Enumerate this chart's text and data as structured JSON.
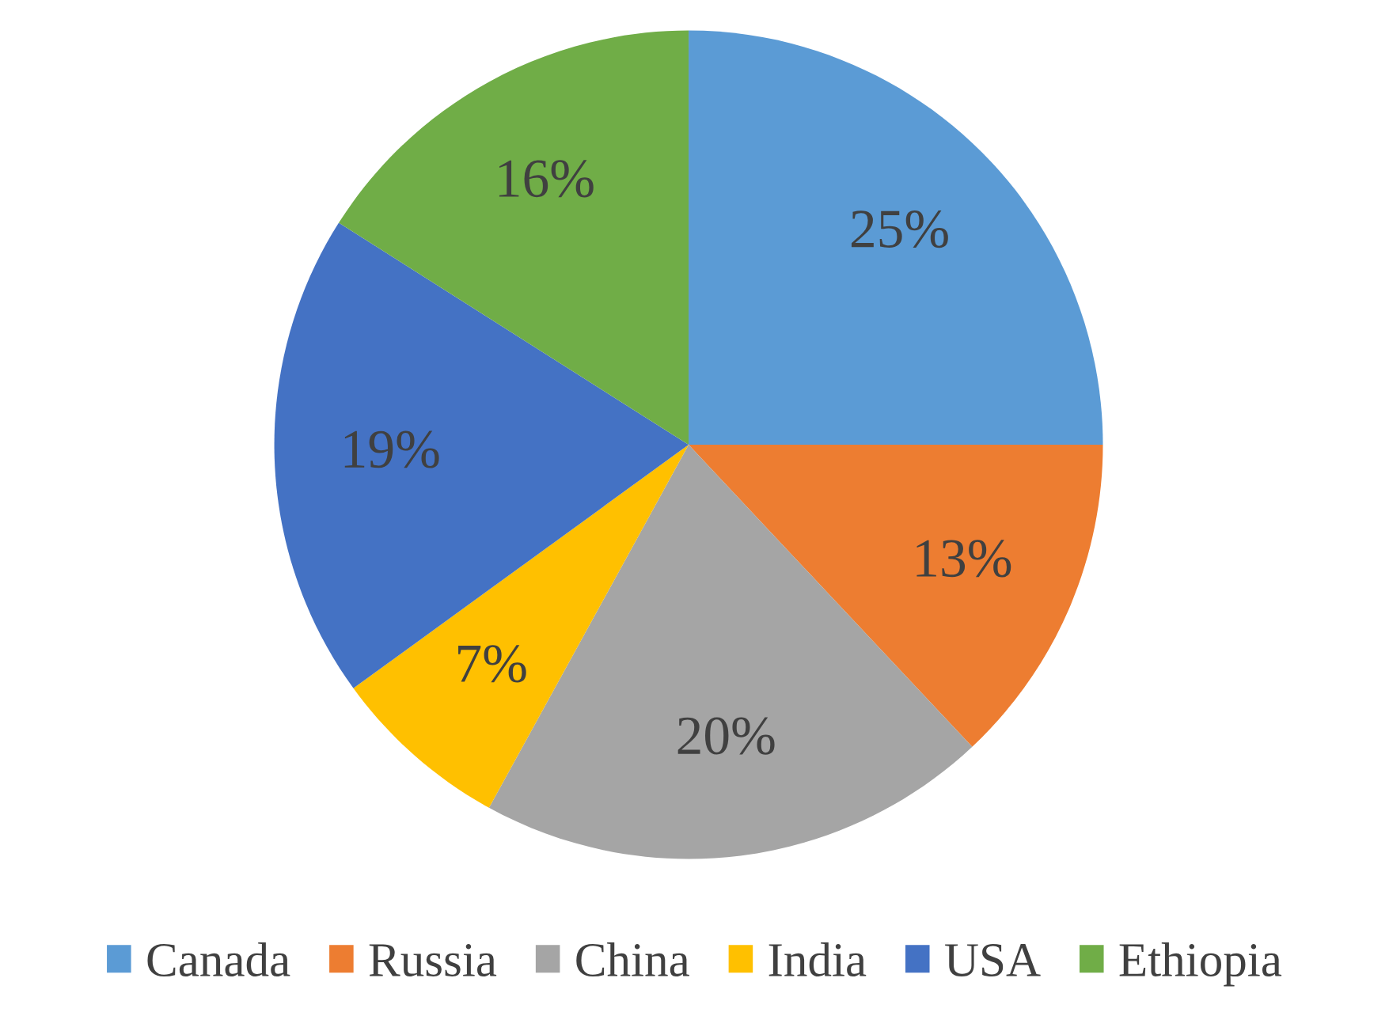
{
  "chart_data": {
    "type": "pie",
    "categories": [
      "Canada",
      "Russia",
      "China",
      "India",
      "USA",
      "Ethiopia"
    ],
    "values": [
      25,
      13,
      20,
      7,
      19,
      16
    ],
    "colors": [
      "#5b9bd5",
      "#ed7d31",
      "#a5a5a5",
      "#ffc000",
      "#4472c4",
      "#70ad47"
    ],
    "value_labels": [
      "25%",
      "13%",
      "20%",
      "7%",
      "19%",
      "16%"
    ],
    "legend": "bottom"
  }
}
